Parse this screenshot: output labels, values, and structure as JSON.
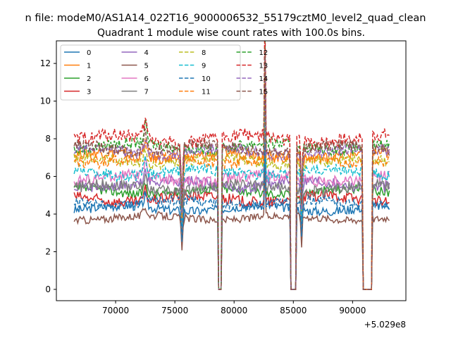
{
  "chart_data": {
    "type": "line",
    "suptitle": "...n file: modeM0/AS1A14_022T16_9000006532_55179cztM0_level2_quad_clean...",
    "suptitle_visible": "n file: modeM0/AS1A14_022T16_9000006532_55179cztM0_level2_quad_clean",
    "title": "Quadrant 1 module wise count rates with 100.0s bins.",
    "xlabel": "",
    "ylabel": "",
    "x_offset_label": "+5.029e8",
    "xlim": [
      65000,
      94500
    ],
    "ylim": [
      -0.6,
      13.2
    ],
    "xticks": [
      70000,
      75000,
      80000,
      85000,
      90000
    ],
    "yticks": [
      0,
      2,
      4,
      6,
      8,
      10,
      12
    ],
    "x_start": 66500,
    "x_end": 93100,
    "bin": 100,
    "gaps": [
      [
        78700,
        78900
      ],
      [
        84800,
        85200
      ],
      [
        90900,
        91600
      ]
    ],
    "spikes": [
      {
        "x": 72500,
        "boost": 0.12,
        "width": 350
      },
      {
        "x": 82600,
        "boost": 0.75,
        "width": 60
      }
    ],
    "dips": [
      {
        "x": 75600,
        "factor": 0.55,
        "width": 150
      },
      {
        "x": 85700,
        "factor": 0.6,
        "width": 120
      }
    ],
    "legend_position": "upper-left",
    "series": [
      {
        "name": "0",
        "color": "#1f77b4",
        "dash": false,
        "level": 4.3,
        "noise": 0.25
      },
      {
        "name": "1",
        "color": "#ff7f0e",
        "dash": false,
        "level": 7.1,
        "noise": 0.3
      },
      {
        "name": "2",
        "color": "#2ca02c",
        "dash": false,
        "level": 5.2,
        "noise": 0.25
      },
      {
        "name": "3",
        "color": "#d62728",
        "dash": false,
        "level": 4.8,
        "noise": 0.3
      },
      {
        "name": "4",
        "color": "#9467bd",
        "dash": false,
        "level": 5.6,
        "noise": 0.3
      },
      {
        "name": "5",
        "color": "#8c564b",
        "dash": false,
        "level": 3.8,
        "noise": 0.2
      },
      {
        "name": "6",
        "color": "#e377c2",
        "dash": false,
        "level": 5.9,
        "noise": 0.3
      },
      {
        "name": "7",
        "color": "#7f7f7f",
        "dash": false,
        "level": 5.4,
        "noise": 0.3
      },
      {
        "name": "8",
        "color": "#bcbd22",
        "dash": true,
        "level": 6.8,
        "noise": 0.3
      },
      {
        "name": "9",
        "color": "#17becf",
        "dash": true,
        "level": 6.2,
        "noise": 0.3
      },
      {
        "name": "10",
        "color": "#1f77b4",
        "dash": true,
        "level": 4.6,
        "noise": 0.25
      },
      {
        "name": "11",
        "color": "#ff7f0e",
        "dash": true,
        "level": 6.9,
        "noise": 0.3
      },
      {
        "name": "12",
        "color": "#2ca02c",
        "dash": true,
        "level": 7.6,
        "noise": 0.3
      },
      {
        "name": "13",
        "color": "#d62728",
        "dash": true,
        "level": 8.0,
        "noise": 0.35
      },
      {
        "name": "14",
        "color": "#9467bd",
        "dash": true,
        "level": 7.3,
        "noise": 0.3
      },
      {
        "name": "15",
        "color": "#8c564b",
        "dash": true,
        "level": 7.5,
        "noise": 0.3
      }
    ]
  }
}
